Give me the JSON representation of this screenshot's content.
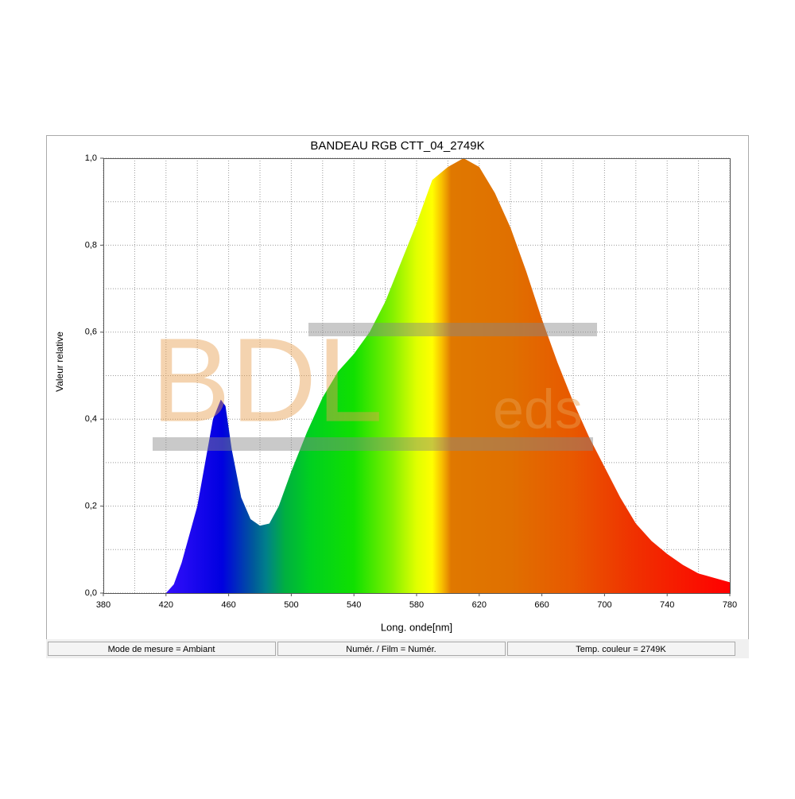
{
  "chart_data": {
    "type": "area",
    "title": "BANDEAU RGB CTT_04_2749K",
    "x_label": "Long. onde[nm]",
    "y_label": "Valeur relative",
    "x": [
      420,
      425,
      430,
      440,
      445,
      450,
      455,
      458,
      462,
      468,
      474,
      480,
      486,
      492,
      500,
      510,
      520,
      530,
      540,
      550,
      560,
      570,
      580,
      590,
      600,
      610,
      620,
      630,
      640,
      650,
      660,
      670,
      680,
      690,
      700,
      710,
      720,
      730,
      740,
      750,
      760,
      770,
      780
    ],
    "values": [
      0,
      0.02,
      0.07,
      0.2,
      0.3,
      0.4,
      0.445,
      0.43,
      0.33,
      0.22,
      0.17,
      0.155,
      0.16,
      0.2,
      0.28,
      0.37,
      0.45,
      0.51,
      0.55,
      0.6,
      0.67,
      0.76,
      0.85,
      0.95,
      0.98,
      1.0,
      0.98,
      0.92,
      0.84,
      0.74,
      0.63,
      0.53,
      0.44,
      0.36,
      0.29,
      0.22,
      0.16,
      0.12,
      0.09,
      0.065,
      0.045,
      0.035,
      0.025
    ],
    "xlim": [
      380,
      780
    ],
    "ylim": [
      0,
      1
    ],
    "xticks": [
      380,
      420,
      460,
      500,
      540,
      580,
      620,
      660,
      700,
      740,
      780
    ],
    "yticks": [
      {
        "value": 0,
        "label": "0,0"
      },
      {
        "value": 0.2,
        "label": "0,2"
      },
      {
        "value": 0.4,
        "label": "0,4"
      },
      {
        "value": 0.6,
        "label": "0,6"
      },
      {
        "value": 0.8,
        "label": "0,8"
      },
      {
        "value": 1,
        "label": "1,0"
      }
    ],
    "x_minor_ticks": [
      400,
      440,
      480,
      520,
      560,
      600,
      640,
      680,
      720,
      760
    ],
    "y_minor_ticks": [
      0.1,
      0.3,
      0.5,
      0.7,
      0.9
    ],
    "grid": true,
    "watermark": [
      "BDL",
      "eds"
    ],
    "status": [
      "Mode de mesure = Ambiant",
      "Numér. / Film = Numér.",
      "Temp. couleur = 2749K"
    ]
  }
}
